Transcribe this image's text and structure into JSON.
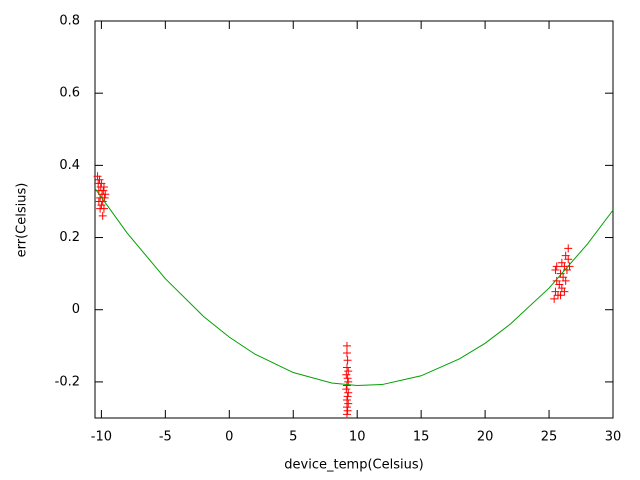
{
  "chart_data": {
    "type": "scatter",
    "x_label": "device_temp(Celsius)",
    "y_label": "err(Celsius)",
    "xlim": [
      -10.5,
      30
    ],
    "ylim": [
      -0.3,
      0.8
    ],
    "xticks": [
      -10,
      -5,
      0,
      5,
      10,
      15,
      20,
      25,
      30
    ],
    "yticks": [
      -0.2,
      0,
      0.2,
      0.4,
      0.6,
      0.8
    ],
    "series": [
      {
        "style": "points",
        "color": "#ff0000",
        "x": [
          -10.3,
          -10.25,
          -10.2,
          -10.15,
          -10.1,
          -10.05,
          -10.0,
          -9.95,
          -9.9,
          -9.85,
          -9.8,
          -9.75,
          -9.9,
          -10.2,
          -10.0,
          -9.7,
          -10.1,
          -9.8,
          9.2,
          9.2,
          9.25,
          9.2,
          9.3,
          9.15,
          9.25,
          9.3,
          9.2,
          9.15,
          9.3,
          9.25,
          9.2,
          9.3,
          9.2,
          9.25,
          9.2,
          25.4,
          25.5,
          25.6,
          25.5,
          25.7,
          25.8,
          25.9,
          25.6,
          26.0,
          26.1,
          26.2,
          26.0,
          26.3,
          26.4,
          26.5,
          26.5,
          26.3,
          25.9,
          26.6,
          26.2
        ],
        "values": [
          0.37,
          0.35,
          0.33,
          0.36,
          0.31,
          0.34,
          0.29,
          0.32,
          0.3,
          0.33,
          0.28,
          0.31,
          0.26,
          0.3,
          0.35,
          0.32,
          0.28,
          0.34,
          -0.1,
          -0.12,
          -0.14,
          -0.16,
          -0.17,
          -0.18,
          -0.19,
          -0.2,
          -0.21,
          -0.22,
          -0.23,
          -0.24,
          -0.25,
          -0.26,
          -0.27,
          -0.28,
          -0.29,
          0.03,
          0.05,
          0.08,
          0.11,
          0.04,
          0.07,
          0.1,
          0.12,
          0.06,
          0.09,
          0.12,
          0.13,
          0.08,
          0.11,
          0.14,
          0.17,
          0.15,
          0.04,
          0.12,
          0.05
        ]
      },
      {
        "style": "line",
        "color": "#00a000",
        "x": [
          -10.5,
          -8,
          -5,
          -2,
          0,
          2,
          5,
          8,
          10,
          12,
          15,
          18,
          20,
          22,
          25,
          28,
          30
        ],
        "values": [
          0.336,
          0.213,
          0.086,
          -0.019,
          -0.076,
          -0.123,
          -0.174,
          -0.203,
          -0.21,
          -0.207,
          -0.183,
          -0.136,
          -0.093,
          -0.039,
          0.06,
          0.182,
          0.276
        ]
      }
    ]
  }
}
